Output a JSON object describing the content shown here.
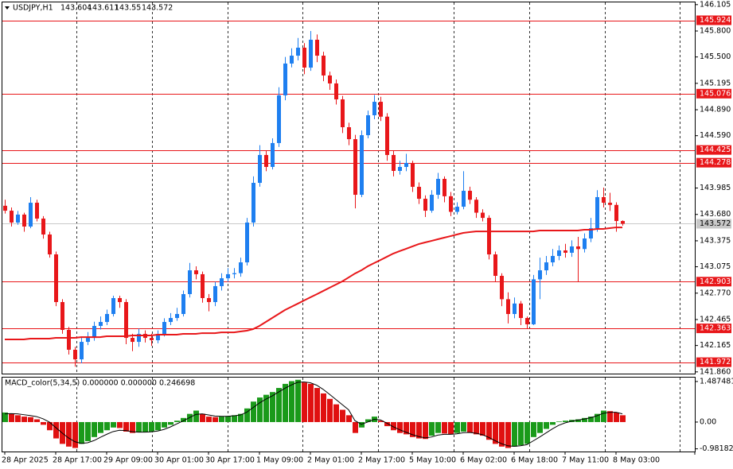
{
  "chart_data": [
    {
      "type": "candlestick",
      "symbol": "USDJPY,H1",
      "categories": [
        "28 Apr 2025",
        null,
        null,
        null,
        null,
        null,
        null,
        null,
        "28 Apr 17:00",
        null,
        null,
        null,
        null,
        null,
        null,
        null,
        "29 Apr 09:00",
        null,
        null,
        null,
        null,
        null,
        null,
        null,
        "30 Apr 01:00",
        null,
        null,
        null,
        null,
        null,
        null,
        null,
        "30 Apr 17:00",
        null,
        null,
        null,
        null,
        null,
        null,
        null,
        "1 May 09:00",
        null,
        null,
        null,
        null,
        null,
        null,
        null,
        "2 May 01:00",
        null,
        null,
        null,
        null,
        null,
        null,
        null,
        "2 May 17:00",
        null,
        null,
        null,
        null,
        null,
        null,
        null,
        "5 May 10:00",
        null,
        null,
        null,
        null,
        null,
        null,
        null,
        "6 May 02:00",
        null,
        null,
        null,
        null,
        null,
        null,
        null,
        "6 May 18:00",
        null,
        null,
        null,
        null,
        null,
        null,
        null,
        "7 May 11:00",
        null,
        null,
        null,
        null,
        null,
        null,
        null,
        "8 May 03:00",
        null
      ],
      "open": [
        143.78,
        143.723,
        143.586,
        143.678,
        143.54,
        143.815,
        143.632,
        143.448,
        143.218,
        142.667,
        142.345,
        142.116,
        142.005,
        142.207,
        142.253,
        142.391,
        142.437,
        142.529,
        142.713,
        142.667,
        142.253,
        142.207,
        142.299,
        142.253,
        142.226,
        142.299,
        142.437,
        142.483,
        142.529,
        142.759,
        143.034,
        142.989,
        142.713,
        142.667,
        142.851,
        142.942,
        142.989,
        143.001,
        143.126,
        143.586,
        144.045,
        144.367,
        144.229,
        144.505,
        145.056,
        145.424,
        145.515,
        145.607,
        145.377,
        145.699,
        145.515,
        145.286,
        145.194,
        145.01,
        144.688,
        144.55,
        143.907,
        144.596,
        144.826,
        144.982,
        144.81,
        144.367,
        144.183,
        144.229,
        144.275,
        143.999,
        143.861,
        143.723,
        143.907,
        144.091,
        143.89,
        143.71,
        143.769,
        143.953,
        143.85,
        143.7,
        143.64,
        143.218,
        142.97,
        142.7,
        142.529,
        142.65,
        142.483,
        142.41,
        142.93,
        143.034,
        143.126,
        143.2,
        143.264,
        143.237,
        143.31,
        143.28,
        143.402,
        143.52,
        143.88,
        143.815,
        143.79,
        143.604
      ],
      "high": [
        143.85,
        143.76,
        143.72,
        143.7,
        143.88,
        143.85,
        143.66,
        143.48,
        143.25,
        142.7,
        142.38,
        142.15,
        142.26,
        142.32,
        142.44,
        142.5,
        142.58,
        142.74,
        142.74,
        142.7,
        142.3,
        142.36,
        142.34,
        142.3,
        142.34,
        142.48,
        142.54,
        142.6,
        142.8,
        143.12,
        143.08,
        143.02,
        142.76,
        142.9,
        143.0,
        143.06,
        143.06,
        143.18,
        143.64,
        144.12,
        144.48,
        144.42,
        144.56,
        145.15,
        145.5,
        145.6,
        145.72,
        145.66,
        145.8,
        145.76,
        145.56,
        145.33,
        145.24,
        145.05,
        144.74,
        144.6,
        144.65,
        144.88,
        145.06,
        145.04,
        144.85,
        144.42,
        144.3,
        144.38,
        144.3,
        144.05,
        143.9,
        143.96,
        144.16,
        144.12,
        143.94,
        143.82,
        144.18,
        144.0,
        143.88,
        143.74,
        143.67,
        143.25,
        143.0,
        142.78,
        142.72,
        142.68,
        142.5,
        142.98,
        143.18,
        143.2,
        143.28,
        143.32,
        143.34,
        143.38,
        143.42,
        143.46,
        143.64,
        143.96,
        143.99,
        143.93,
        143.82,
        143.611
      ],
      "low": [
        143.69,
        143.54,
        143.56,
        143.48,
        143.52,
        143.6,
        143.4,
        143.18,
        142.62,
        142.3,
        142.06,
        141.92,
        141.96,
        142.17,
        142.22,
        142.35,
        142.4,
        142.5,
        142.6,
        142.18,
        142.1,
        142.15,
        142.2,
        142.16,
        142.19,
        142.27,
        142.4,
        142.45,
        142.5,
        142.72,
        142.93,
        142.66,
        142.56,
        142.62,
        142.8,
        142.9,
        142.94,
        142.96,
        143.09,
        143.54,
        144.0,
        144.18,
        144.2,
        144.46,
        145.0,
        145.38,
        145.46,
        145.3,
        145.34,
        145.44,
        145.22,
        145.12,
        144.95,
        144.62,
        144.48,
        143.75,
        143.88,
        144.56,
        144.78,
        144.76,
        144.3,
        144.12,
        144.14,
        144.18,
        143.94,
        143.8,
        143.65,
        143.7,
        143.86,
        143.82,
        143.66,
        143.68,
        143.74,
        143.8,
        143.64,
        143.6,
        143.16,
        142.9,
        142.62,
        142.42,
        142.48,
        142.4,
        142.36,
        142.4,
        142.7,
        142.98,
        143.08,
        143.15,
        143.18,
        143.19,
        142.9,
        143.24,
        143.36,
        143.48,
        143.76,
        143.72,
        143.48,
        143.55
      ],
      "close": [
        143.723,
        143.586,
        143.678,
        143.54,
        143.815,
        143.632,
        143.448,
        143.218,
        142.667,
        142.345,
        142.116,
        142.005,
        142.207,
        142.253,
        142.391,
        142.437,
        142.529,
        142.713,
        142.667,
        142.253,
        142.207,
        142.299,
        142.253,
        142.226,
        142.299,
        142.437,
        142.483,
        142.529,
        142.759,
        143.034,
        142.989,
        142.713,
        142.667,
        142.851,
        142.942,
        142.989,
        143.001,
        143.126,
        143.586,
        144.045,
        144.367,
        144.229,
        144.505,
        145.056,
        145.424,
        145.515,
        145.607,
        145.377,
        145.699,
        145.515,
        145.286,
        145.194,
        145.01,
        144.688,
        144.55,
        143.907,
        144.596,
        144.826,
        144.982,
        144.81,
        144.367,
        144.183,
        144.229,
        144.275,
        143.999,
        143.861,
        143.723,
        143.907,
        144.091,
        143.89,
        143.71,
        143.769,
        143.953,
        143.85,
        143.7,
        143.64,
        143.218,
        142.97,
        142.7,
        142.529,
        142.65,
        142.483,
        142.41,
        142.93,
        143.034,
        143.126,
        143.2,
        143.264,
        143.237,
        143.31,
        143.28,
        143.402,
        143.52,
        143.88,
        143.815,
        143.79,
        143.604,
        143.572
      ],
      "moving_average": [
        142.235,
        142.235,
        142.235,
        142.235,
        142.244,
        142.244,
        142.244,
        142.244,
        142.253,
        142.253,
        142.253,
        142.253,
        142.262,
        142.262,
        142.262,
        142.262,
        142.272,
        142.272,
        142.272,
        142.272,
        142.281,
        142.281,
        142.281,
        142.281,
        142.29,
        142.29,
        142.29,
        142.29,
        142.299,
        142.299,
        142.299,
        142.308,
        142.308,
        142.308,
        142.317,
        142.317,
        142.317,
        142.327,
        142.336,
        142.354,
        142.391,
        142.437,
        142.483,
        142.529,
        142.575,
        142.612,
        142.648,
        142.685,
        142.722,
        142.758,
        142.795,
        142.832,
        142.869,
        142.906,
        142.951,
        142.997,
        143.034,
        143.08,
        143.117,
        143.153,
        143.19,
        143.227,
        143.255,
        143.282,
        143.31,
        143.337,
        143.356,
        143.374,
        143.393,
        143.411,
        143.429,
        143.448,
        143.466,
        143.475,
        143.484,
        143.484,
        143.484,
        143.484,
        143.484,
        143.484,
        143.484,
        143.484,
        143.484,
        143.484,
        143.494,
        143.494,
        143.494,
        143.494,
        143.494,
        143.494,
        143.494,
        143.503,
        143.503,
        143.512,
        143.512,
        143.521,
        143.53,
        143.53
      ],
      "up_color": "#1e7ff0",
      "down_color": "#e8171a",
      "ma_color": "#e8171a",
      "levels": [
        145.924,
        145.076,
        144.425,
        144.278,
        142.903,
        142.363,
        141.972
      ],
      "level_color": "#e8171a",
      "ylim": [
        141.84,
        146.14
      ],
      "yticks": [
        146.105,
        {
          "value": 145.8,
          "label": "145.800"
        },
        {
          "value": 145.5,
          "label": "145.500"
        },
        145.195,
        {
          "value": 144.89,
          "label": "144.890"
        },
        {
          "value": 144.59,
          "label": "144.590"
        },
        143.985,
        {
          "value": 143.68,
          "label": "143.680"
        },
        143.375,
        143.075,
        {
          "value": 142.77,
          "label": "142.770"
        },
        142.465,
        142.165,
        {
          "value": 141.86,
          "label": "141.860"
        }
      ]
    },
    {
      "type": "macd",
      "title": "MACD_color(5,34,5) 0.000000 0.000000 0.246698",
      "values": [
        0.35,
        0.32,
        0.25,
        0.2,
        0.18,
        0.1,
        -0.1,
        -0.3,
        -0.6,
        -0.8,
        -0.9,
        -0.95,
        -0.8,
        -0.7,
        -0.55,
        -0.4,
        -0.3,
        -0.2,
        -0.22,
        -0.35,
        -0.4,
        -0.38,
        -0.36,
        -0.35,
        -0.3,
        -0.2,
        -0.1,
        0.05,
        0.15,
        0.3,
        0.42,
        0.3,
        0.2,
        0.18,
        0.2,
        0.22,
        0.25,
        0.3,
        0.5,
        0.75,
        0.9,
        1.0,
        1.1,
        1.25,
        1.4,
        1.5,
        1.55,
        1.45,
        1.4,
        1.25,
        1.05,
        0.85,
        0.65,
        0.45,
        0.25,
        -0.4,
        -0.2,
        0.1,
        0.2,
        0.05,
        -0.15,
        -0.3,
        -0.4,
        -0.45,
        -0.55,
        -0.6,
        -0.62,
        -0.5,
        -0.4,
        -0.42,
        -0.45,
        -0.4,
        -0.35,
        -0.38,
        -0.45,
        -0.5,
        -0.65,
        -0.8,
        -0.9,
        -0.95,
        -0.9,
        -0.85,
        -0.8,
        -0.55,
        -0.4,
        -0.25,
        -0.1,
        0.02,
        0.05,
        0.08,
        0.1,
        0.15,
        0.2,
        0.3,
        0.42,
        0.4,
        0.35,
        0.25
      ],
      "signal": [
        0.3,
        0.31,
        0.3,
        0.27,
        0.24,
        0.2,
        0.12,
        0,
        -0.2,
        -0.4,
        -0.58,
        -0.72,
        -0.78,
        -0.76,
        -0.68,
        -0.56,
        -0.45,
        -0.35,
        -0.3,
        -0.31,
        -0.35,
        -0.37,
        -0.37,
        -0.36,
        -0.33,
        -0.27,
        -0.18,
        -0.07,
        0.04,
        0.16,
        0.28,
        0.3,
        0.26,
        0.22,
        0.21,
        0.21,
        0.23,
        0.26,
        0.36,
        0.53,
        0.7,
        0.84,
        0.96,
        1.1,
        1.24,
        1.36,
        1.46,
        1.47,
        1.44,
        1.35,
        1.2,
        1.02,
        0.83,
        0.64,
        0.45,
        0.05,
        -0.08,
        0,
        0.1,
        0.08,
        -0.04,
        -0.17,
        -0.28,
        -0.37,
        -0.46,
        -0.53,
        -0.58,
        -0.55,
        -0.48,
        -0.45,
        -0.45,
        -0.43,
        -0.39,
        -0.38,
        -0.41,
        -0.46,
        -0.56,
        -0.68,
        -0.79,
        -0.87,
        -0.89,
        -0.87,
        -0.83,
        -0.69,
        -0.55,
        -0.4,
        -0.25,
        -0.12,
        -0.03,
        0.03,
        0.07,
        0.11,
        0.16,
        0.23,
        0.32,
        0.36,
        0.36,
        0.3
      ],
      "up_color": "#1a9a1a",
      "down_color": "#e01010",
      "signal_color": "#000000",
      "ylim": [
        -1.08,
        1.66
      ],
      "yticks": [
        1.487481,
        {
          "value": 0,
          "label": "0.00"
        },
        -0.981824
      ]
    }
  ]
}
